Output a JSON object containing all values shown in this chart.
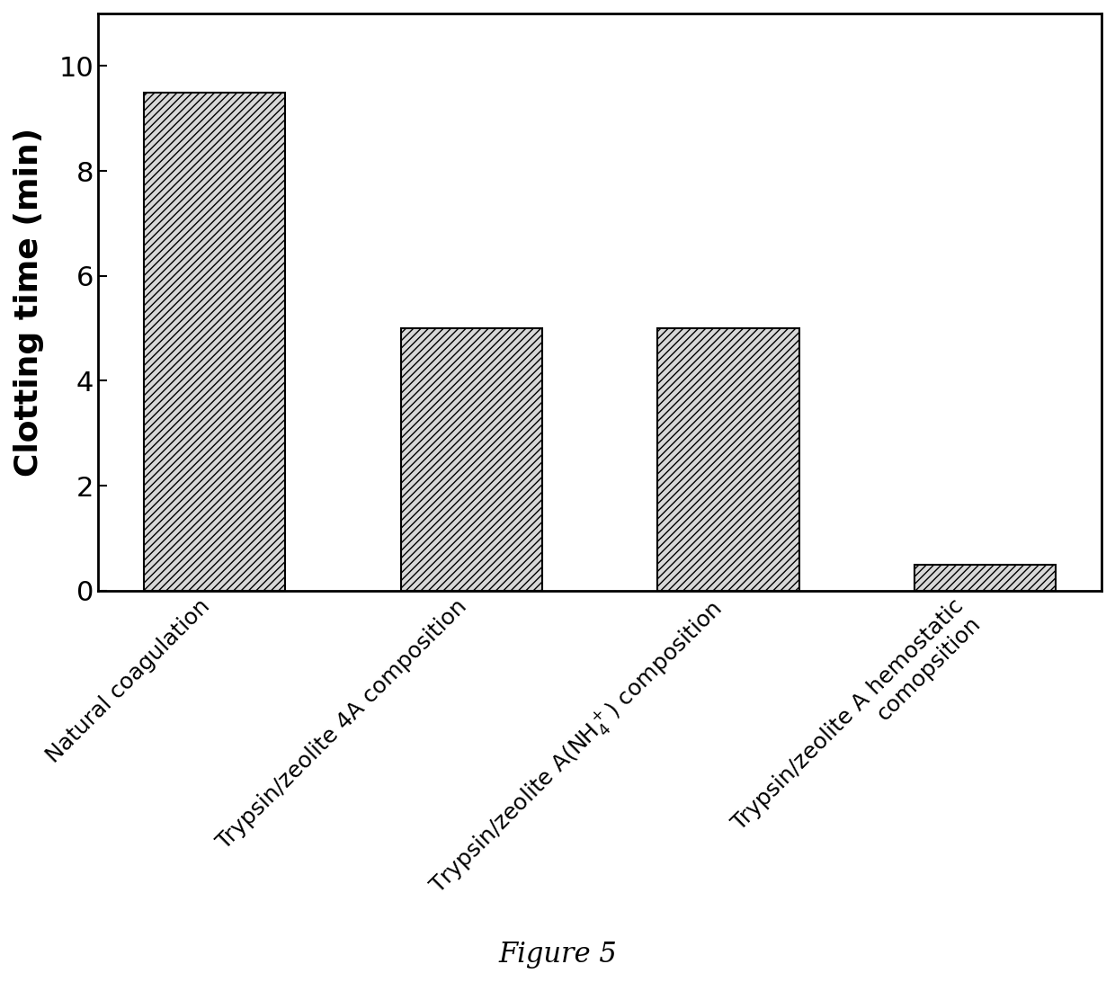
{
  "categories_display": [
    "Natural coagulation",
    "Trypsin/zeolite 4A composition",
    "Trypsin/zeolite A(NH$_4^+$) composition",
    "Trypsin/zeolite A hemostatic\ncomopsition"
  ],
  "values": [
    9.5,
    5.0,
    5.0,
    0.5
  ],
  "ylabel": "Clotting time (min)",
  "ylim": [
    0,
    11
  ],
  "yticks": [
    0,
    2,
    4,
    6,
    8,
    10
  ],
  "bar_facecolor": "#d8d8d8",
  "bar_edgecolor": "#000000",
  "hatch": "////",
  "figure_caption": "Figure 5",
  "background_color": "#ffffff",
  "bar_width": 0.55,
  "ylabel_fontsize": 26,
  "ylabel_fontweight": "bold",
  "ytick_fontsize": 22,
  "xtick_fontsize": 18,
  "caption_fontsize": 22
}
